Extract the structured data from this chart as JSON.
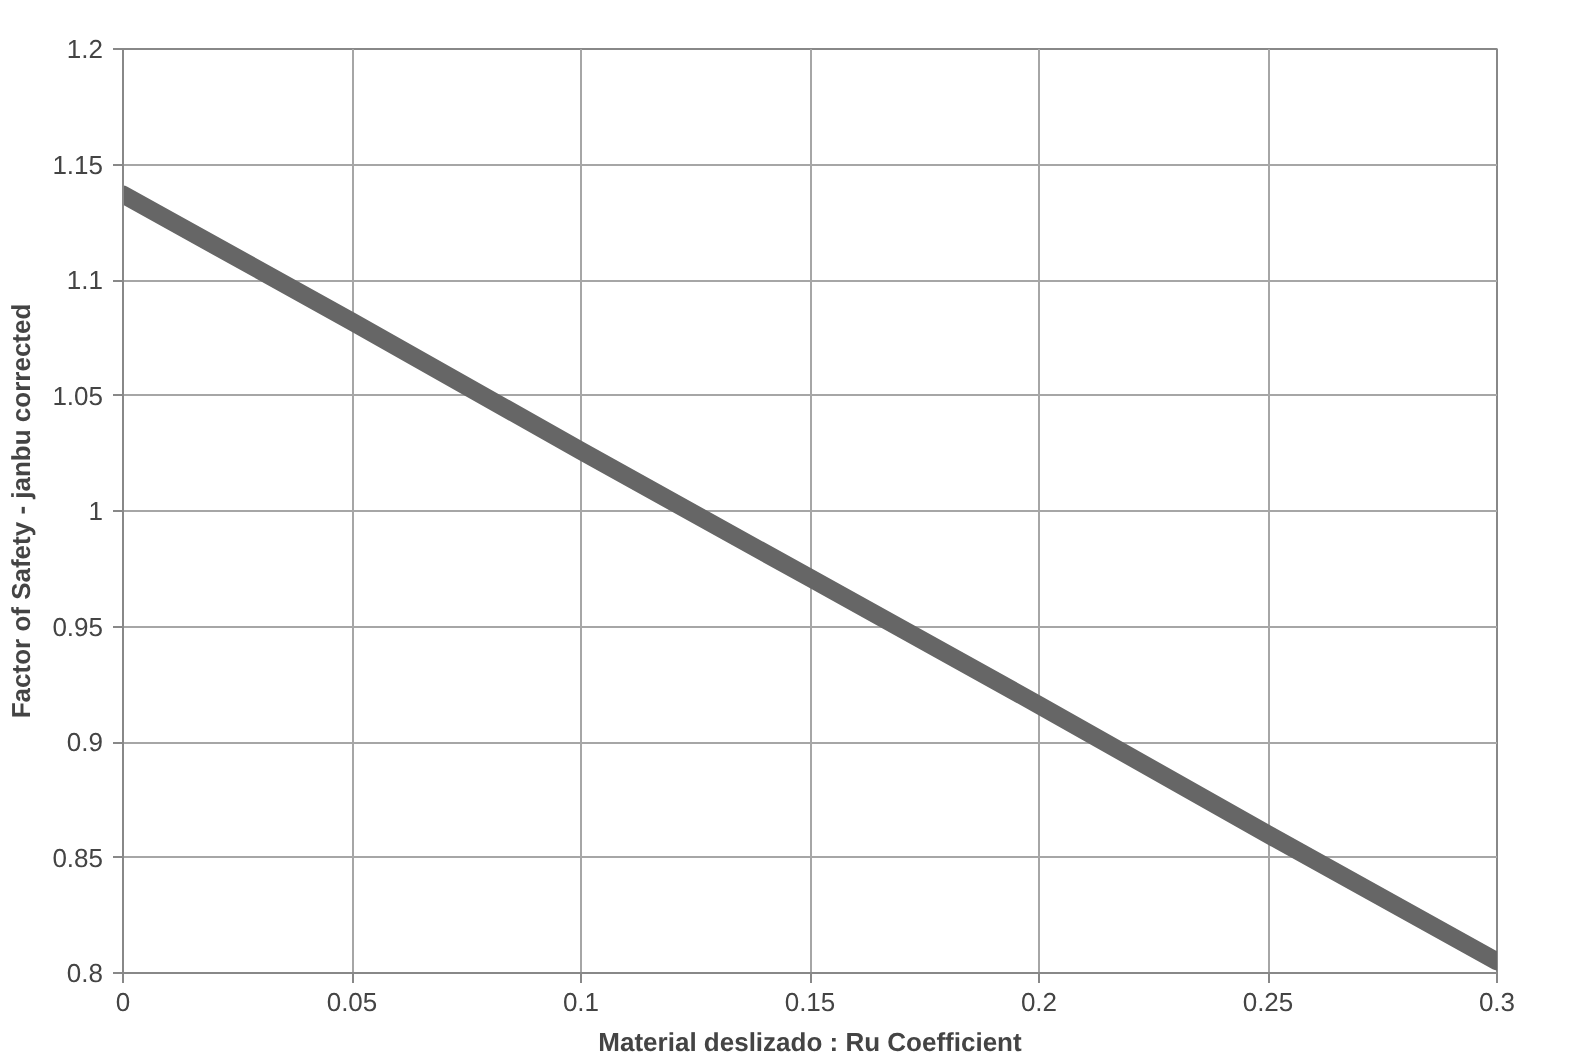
{
  "chart_data": {
    "type": "line",
    "xlabel": "Material deslizado : Ru Coefficient",
    "ylabel": "Factor of Safety - janbu corrected",
    "x": [
      0,
      0.05,
      0.1,
      0.15,
      0.2,
      0.25,
      0.3
    ],
    "series": [
      {
        "color": "#666666",
        "values": [
          1.137,
          1.082,
          1.026,
          0.971,
          0.916,
          0.86,
          0.805
        ]
      }
    ],
    "xlim": [
      0,
      0.3
    ],
    "ylim": [
      0.8,
      1.2
    ],
    "xticks": [
      0,
      0.05,
      0.1,
      0.15,
      0.2,
      0.25,
      0.3
    ],
    "yticks": [
      0.8,
      0.85,
      0.9,
      0.95,
      1,
      1.05,
      1.1,
      1.15,
      1.2
    ],
    "grid": true
  }
}
